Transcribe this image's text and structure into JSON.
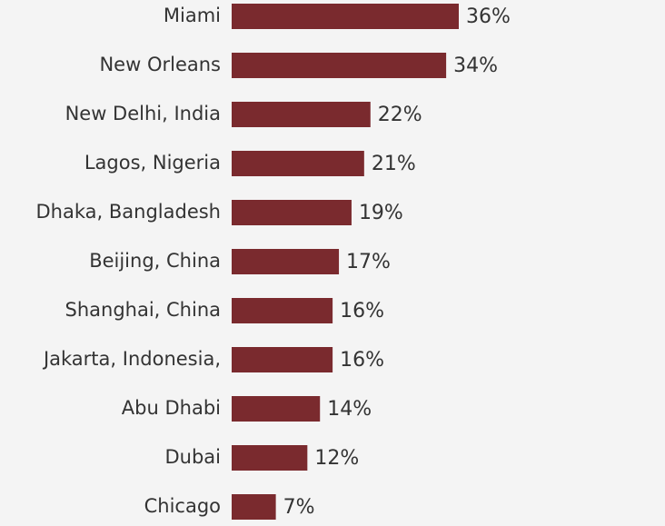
{
  "chart_data": {
    "type": "bar",
    "orientation": "horizontal",
    "categories": [
      "Miami",
      "New Orleans",
      "New Delhi, India",
      "Lagos, Nigeria",
      "Dhaka, Bangladesh",
      "Beijing, China",
      "Shanghai, China",
      "Jakarta, Indonesia,",
      "Abu Dhabi",
      "Dubai",
      "Chicago"
    ],
    "values": [
      36,
      34,
      22,
      21,
      19,
      17,
      16,
      16,
      14,
      12,
      7
    ],
    "value_labels": [
      "36%",
      "34%",
      "22%",
      "21%",
      "19%",
      "17%",
      "16%",
      "16%",
      "14%",
      "12%",
      "7%"
    ],
    "color": "#7a2a2e"
  }
}
